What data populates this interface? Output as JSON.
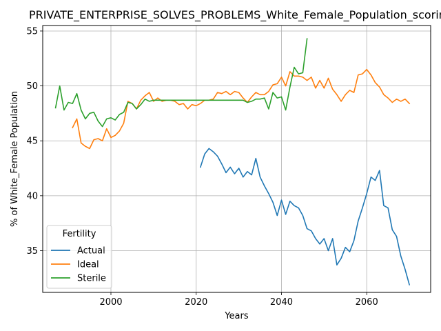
{
  "chart_data": {
    "type": "line",
    "title": "PRIVATE_ENTERPRISE_SOLVES_PROBLEMS_White_Female_Population_scoring",
    "xlabel": "Years",
    "ylabel": "% of White_Female Population",
    "xlim": [
      1984,
      2075
    ],
    "ylim": [
      31.2,
      55.5
    ],
    "xticks": [
      2000,
      2020,
      2040,
      2060
    ],
    "yticks": [
      35,
      40,
      45,
      50,
      55
    ],
    "grid": true,
    "legend": {
      "title": "Fertility",
      "position": "lower-left"
    },
    "series": [
      {
        "name": "Actual",
        "color": "#1f77b4",
        "x": [
          2021,
          2022,
          2023,
          2024,
          2025,
          2026,
          2027,
          2028,
          2029,
          2030,
          2031,
          2032,
          2033,
          2034,
          2035,
          2036,
          2037,
          2038,
          2039,
          2040,
          2041,
          2042,
          2043,
          2044,
          2045,
          2046,
          2047,
          2048,
          2049,
          2050,
          2051,
          2052,
          2053,
          2054,
          2055,
          2056,
          2057,
          2058,
          2059,
          2060,
          2061,
          2062,
          2063,
          2064,
          2065,
          2066,
          2067,
          2068,
          2069,
          2070
        ],
        "y": [
          42.6,
          43.8,
          44.3,
          44.0,
          43.6,
          42.9,
          42.1,
          42.6,
          42.0,
          42.5,
          41.7,
          42.2,
          41.9,
          43.4,
          41.7,
          40.9,
          40.2,
          39.4,
          38.2,
          39.6,
          38.3,
          39.5,
          39.1,
          38.9,
          38.2,
          37.0,
          36.8,
          36.1,
          35.6,
          36.1,
          35.0,
          36.1,
          33.7,
          34.3,
          35.3,
          34.9,
          35.9,
          37.7,
          38.9,
          40.2,
          41.7,
          41.4,
          42.3,
          39.1,
          38.9,
          36.9,
          36.3,
          34.5,
          33.3,
          31.9
        ]
      },
      {
        "name": "Ideal",
        "color": "#ff7f0e",
        "x": [
          1991,
          1992,
          1993,
          1994,
          1995,
          1996,
          1997,
          1998,
          1999,
          2000,
          2001,
          2002,
          2003,
          2004,
          2005,
          2006,
          2007,
          2008,
          2009,
          2010,
          2011,
          2012,
          2013,
          2014,
          2015,
          2016,
          2017,
          2018,
          2019,
          2020,
          2021,
          2022,
          2023,
          2024,
          2025,
          2026,
          2027,
          2028,
          2029,
          2030,
          2031,
          2032,
          2033,
          2034,
          2035,
          2036,
          2037,
          2038,
          2039,
          2040,
          2041,
          2042,
          2043,
          2044,
          2045,
          2046,
          2047,
          2048,
          2049,
          2050,
          2051,
          2052,
          2053,
          2054,
          2055,
          2056,
          2057,
          2058,
          2059,
          2060,
          2061,
          2062,
          2063,
          2064,
          2065,
          2066,
          2067,
          2068,
          2069,
          2070
        ],
        "y": [
          46.2,
          47.0,
          44.8,
          44.5,
          44.3,
          45.1,
          45.2,
          45.0,
          46.1,
          45.3,
          45.5,
          45.9,
          46.6,
          48.6,
          48.4,
          47.9,
          48.7,
          49.1,
          49.4,
          48.6,
          48.9,
          48.6,
          48.7,
          48.7,
          48.6,
          48.3,
          48.4,
          47.9,
          48.3,
          48.2,
          48.4,
          48.7,
          48.7,
          48.8,
          49.4,
          49.3,
          49.5,
          49.2,
          49.5,
          49.4,
          48.9,
          48.5,
          49.0,
          49.4,
          49.2,
          49.2,
          49.5,
          50.1,
          50.2,
          50.8,
          50.0,
          51.3,
          50.9,
          50.9,
          50.8,
          50.5,
          50.8,
          49.8,
          50.5,
          49.8,
          50.7,
          49.7,
          49.2,
          48.6,
          49.2,
          49.6,
          49.4,
          51.0,
          51.1,
          51.5,
          51.0,
          50.3,
          49.9,
          49.2,
          48.9,
          48.5,
          48.8,
          48.6,
          48.8,
          48.4
        ]
      },
      {
        "name": "Sterile",
        "color": "#2ca02c",
        "x": [
          1987,
          1988,
          1989,
          1990,
          1991,
          1992,
          1993,
          1994,
          1995,
          1996,
          1997,
          1998,
          1999,
          2000,
          2001,
          2002,
          2003,
          2004,
          2005,
          2006,
          2007,
          2008,
          2009,
          2010,
          2011,
          2012,
          2013,
          2014,
          2015,
          2016,
          2017,
          2018,
          2019,
          2020,
          2021,
          2022,
          2023,
          2024,
          2025,
          2026,
          2027,
          2028,
          2029,
          2030,
          2031,
          2032,
          2033,
          2034,
          2035,
          2036,
          2037,
          2038,
          2039,
          2040,
          2041,
          2042,
          2043,
          2044,
          2045,
          2046
        ],
        "y": [
          48.0,
          50.0,
          47.8,
          48.5,
          48.4,
          49.3,
          47.8,
          47.0,
          47.5,
          47.6,
          46.8,
          46.3,
          47.0,
          47.1,
          46.9,
          47.4,
          47.6,
          48.5,
          48.4,
          47.9,
          48.3,
          48.8,
          48.6,
          48.7,
          48.7,
          48.7,
          48.7,
          48.7,
          48.7,
          48.7,
          48.7,
          48.7,
          48.7,
          48.7,
          48.7,
          48.7,
          48.7,
          48.7,
          48.7,
          48.7,
          48.7,
          48.7,
          48.7,
          48.7,
          48.7,
          48.5,
          48.6,
          48.8,
          48.8,
          48.9,
          47.9,
          49.4,
          48.9,
          49.0,
          47.8,
          49.9,
          51.7,
          51.1,
          51.2,
          54.3
        ]
      }
    ]
  }
}
